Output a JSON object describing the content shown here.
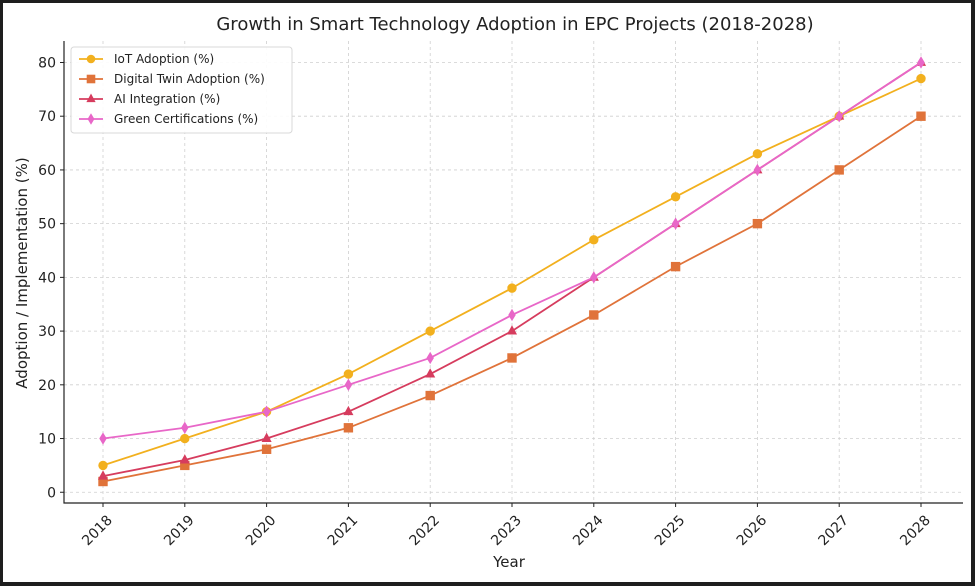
{
  "chart_data": {
    "type": "line",
    "title": "Growth in Smart Technology Adoption in EPC Projects (2018-2028)",
    "xlabel": "Year",
    "ylabel": "Adoption / Implementation (%)",
    "categories": [
      "2018",
      "2019",
      "2020",
      "2021",
      "2022",
      "2023",
      "2024",
      "2025",
      "2026",
      "2027",
      "2028"
    ],
    "ylim": [
      -2,
      84
    ],
    "yticks": [
      0,
      10,
      20,
      30,
      40,
      50,
      60,
      70,
      80
    ],
    "grid": true,
    "legend_position": "top-left",
    "series": [
      {
        "name": "IoT Adoption (%)",
        "color": "#f2b01e",
        "marker": "circle",
        "values": [
          5,
          10,
          15,
          22,
          30,
          38,
          47,
          55,
          63,
          70,
          77
        ]
      },
      {
        "name": "Digital Twin Adoption (%)",
        "color": "#e0733a",
        "marker": "square",
        "values": [
          2,
          5,
          8,
          12,
          18,
          25,
          33,
          42,
          50,
          60,
          70
        ]
      },
      {
        "name": "AI Integration (%)",
        "color": "#d63c5e",
        "marker": "triangle",
        "values": [
          3,
          6,
          10,
          15,
          22,
          30,
          40,
          50,
          60,
          70,
          80
        ]
      },
      {
        "name": "Green Certifications (%)",
        "color": "#e867c8",
        "marker": "diamond",
        "values": [
          10,
          12,
          15,
          20,
          25,
          33,
          40,
          50,
          60,
          70,
          80
        ]
      }
    ]
  }
}
